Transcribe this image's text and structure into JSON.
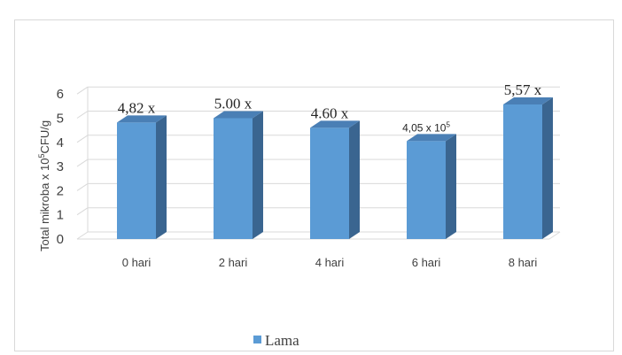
{
  "chart_data": {
    "type": "bar",
    "categories": [
      "0 hari",
      "2 hari",
      "4 hari",
      "6 hari",
      "8 hari"
    ],
    "series": [
      {
        "name": "Lama",
        "values": [
          4.82,
          5.0,
          4.6,
          4.05,
          5.57
        ]
      }
    ],
    "data_labels": [
      "4,82 x",
      "5.00 x",
      "4.60 x",
      "4,05 x 10",
      "5,57 x"
    ],
    "data_label_superscripts": [
      "",
      "",
      "",
      "5",
      ""
    ],
    "ylabel": "Total mikroba x 10",
    "ylabel_superscript": "5",
    "ylabel_suffix": "CFU/g",
    "ylim": [
      0,
      6
    ],
    "yticks": [
      "0",
      "1",
      "2",
      "3",
      "4",
      "5",
      "6"
    ],
    "grid": true,
    "legend_position": "bottom",
    "colors": {
      "bar_front": "#5b9bd5",
      "bar_side": "#3a6590",
      "bar_top": "#4a7fb5",
      "grid": "#d9d9d9",
      "floor": "#d9d9d9"
    }
  }
}
